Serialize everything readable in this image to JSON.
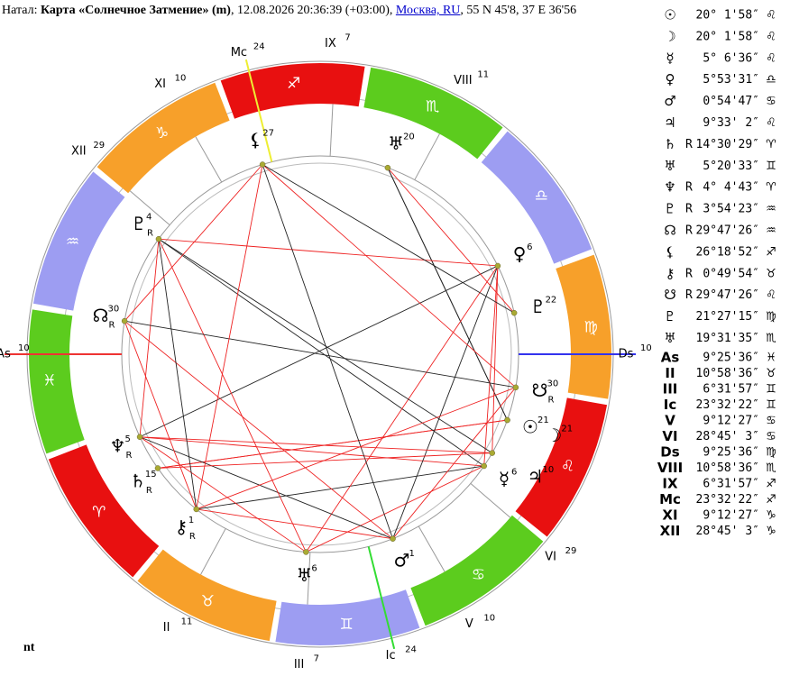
{
  "header": {
    "prefix": "Натал: ",
    "title": "Карта «Солнечное Затмение» (m)",
    "datetime": ", 12.08.2026 20:36:39 (+03:00), ",
    "place": "Москва, RU",
    "coords": ", 55 N 45'8, 37 E 36'56"
  },
  "footer": "nt",
  "signs": [
    {
      "glyph": "♈",
      "color": "#e81010"
    },
    {
      "glyph": "♉",
      "color": "#f7a02a"
    },
    {
      "glyph": "♊",
      "color": "#9d9df2"
    },
    {
      "glyph": "♋",
      "color": "#5ccc1e"
    },
    {
      "glyph": "♌",
      "color": "#e81010"
    },
    {
      "glyph": "♍",
      "color": "#f7a02a"
    },
    {
      "glyph": "♎",
      "color": "#9d9df2"
    },
    {
      "glyph": "♏",
      "color": "#5ccc1e"
    },
    {
      "glyph": "♐",
      "color": "#e81010"
    },
    {
      "glyph": "♑",
      "color": "#f7a02a"
    },
    {
      "glyph": "♒",
      "color": "#9d9df2"
    },
    {
      "glyph": "♓",
      "color": "#5ccc1e"
    }
  ],
  "planets": [
    {
      "glyph": "☉",
      "retro": "",
      "position": "20° 1'58″",
      "sign": "♌",
      "sup": "21"
    },
    {
      "glyph": "☽",
      "retro": "",
      "position": "20° 1'58″",
      "sign": "♌",
      "sup": "21"
    },
    {
      "glyph": "☿",
      "retro": "",
      "position": "5° 6'36″",
      "sign": "♌",
      "sup": "6"
    },
    {
      "glyph": "♀",
      "retro": "",
      "position": "5°53'31″",
      "sign": "♎",
      "sup": "6"
    },
    {
      "glyph": "♂",
      "retro": "",
      "position": "0°54'47″",
      "sign": "♋",
      "sup": "1"
    },
    {
      "glyph": "♃",
      "retro": "",
      "position": "9°33' 2″",
      "sign": "♌",
      "sup": "10"
    },
    {
      "glyph": "♄",
      "retro": "R",
      "position": "14°30'29″",
      "sign": "♈",
      "sup": "15"
    },
    {
      "glyph": "♅",
      "retro": "",
      "position": "5°20'33″",
      "sign": "♊",
      "sup": "6"
    },
    {
      "glyph": "♆",
      "retro": "R",
      "position": "4° 4'43″",
      "sign": "♈",
      "sup": "5"
    },
    {
      "glyph": "♇",
      "retro": "R",
      "position": "3°54'23″",
      "sign": "♒",
      "sup": "4"
    },
    {
      "glyph": "☊",
      "retro": "R",
      "position": "29°47'26″",
      "sign": "♒",
      "sup": "30"
    },
    {
      "glyph": "⚸",
      "retro": "",
      "position": "26°18'52″",
      "sign": "♐",
      "sup": "27"
    },
    {
      "glyph": "⚷",
      "retro": "R",
      "position": "0°49'54″",
      "sign": "♉",
      "sup": "1"
    },
    {
      "glyph": "☋",
      "retro": "R",
      "position": "29°47'26″",
      "sign": "♌",
      "sup": "30"
    },
    {
      "glyph": "♇",
      "retro": "",
      "position": "21°27'15″",
      "sign": "♍",
      "sup": "22"
    },
    {
      "glyph": "♅",
      "retro": "",
      "position": "19°31'35″",
      "sign": "♏",
      "sup": "20"
    }
  ],
  "houses": [
    {
      "label": "As",
      "position": "9°25'36″",
      "sign": "♓",
      "sup": "10"
    },
    {
      "label": "II",
      "position": "10°58'36″",
      "sign": "♉",
      "sup": "11"
    },
    {
      "label": "III",
      "position": "6°31'57″",
      "sign": "♊",
      "sup": "7"
    },
    {
      "label": "Ic",
      "position": "23°32'22″",
      "sign": "♊",
      "sup": "24"
    },
    {
      "label": "V",
      "position": "9°12'27″",
      "sign": "♋",
      "sup": "10"
    },
    {
      "label": "VI",
      "position": "28°45' 3″",
      "sign": "♋",
      "sup": "29"
    },
    {
      "label": "Ds",
      "position": "9°25'36″",
      "sign": "♍",
      "sup": "10"
    },
    {
      "label": "VIII",
      "position": "10°58'36″",
      "sign": "♏",
      "sup": "11"
    },
    {
      "label": "IX",
      "position": "6°31'57″",
      "sign": "♐",
      "sup": "7"
    },
    {
      "label": "Mc",
      "position": "23°32'22″",
      "sign": "♐",
      "sup": "24"
    },
    {
      "label": "XI",
      "position": "9°12'27″",
      "sign": "♑",
      "sup": "10"
    },
    {
      "label": "XII",
      "position": "28°45' 3″",
      "sign": "♑",
      "sup": "29"
    }
  ]
}
